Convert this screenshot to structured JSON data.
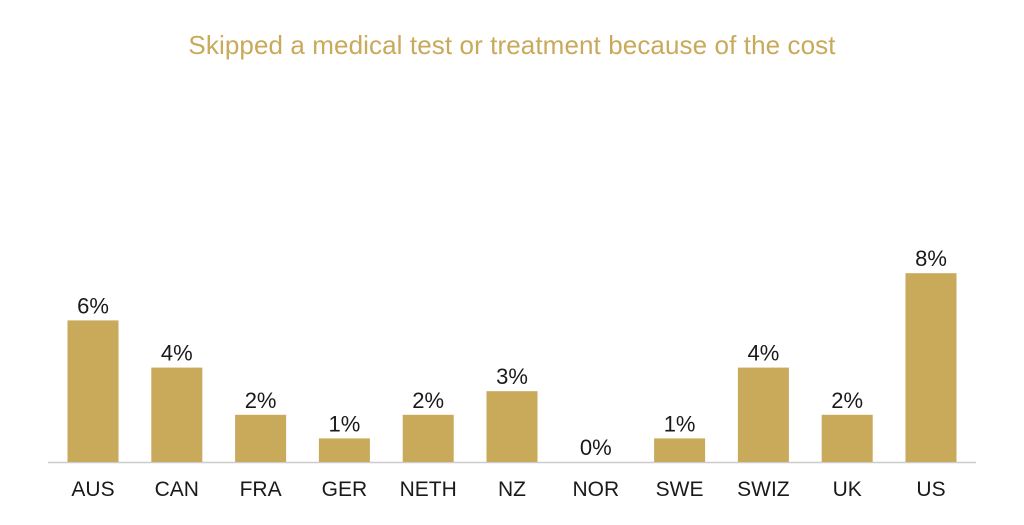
{
  "chart_data": {
    "type": "bar",
    "title": "Skipped a medical test or treatment because of the cost",
    "categories": [
      "AUS",
      "CAN",
      "FRA",
      "GER",
      "NETH",
      "NZ",
      "NOR",
      "SWE",
      "SWIZ",
      "UK",
      "US"
    ],
    "values": [
      6,
      4,
      2,
      1,
      2,
      3,
      0,
      1,
      4,
      2,
      8
    ],
    "value_labels": [
      "6%",
      "4%",
      "2%",
      "1%",
      "2%",
      "3%",
      "0%",
      "1%",
      "4%",
      "2%",
      "8%"
    ],
    "xlabel": "",
    "ylabel": "",
    "ylim": [
      0,
      8
    ],
    "grid": false,
    "legend": "none",
    "colors": {
      "bar": "#c9a95a",
      "title": "#c9a95a",
      "axis": "#cccccc",
      "text": "#1a1a1a"
    }
  }
}
